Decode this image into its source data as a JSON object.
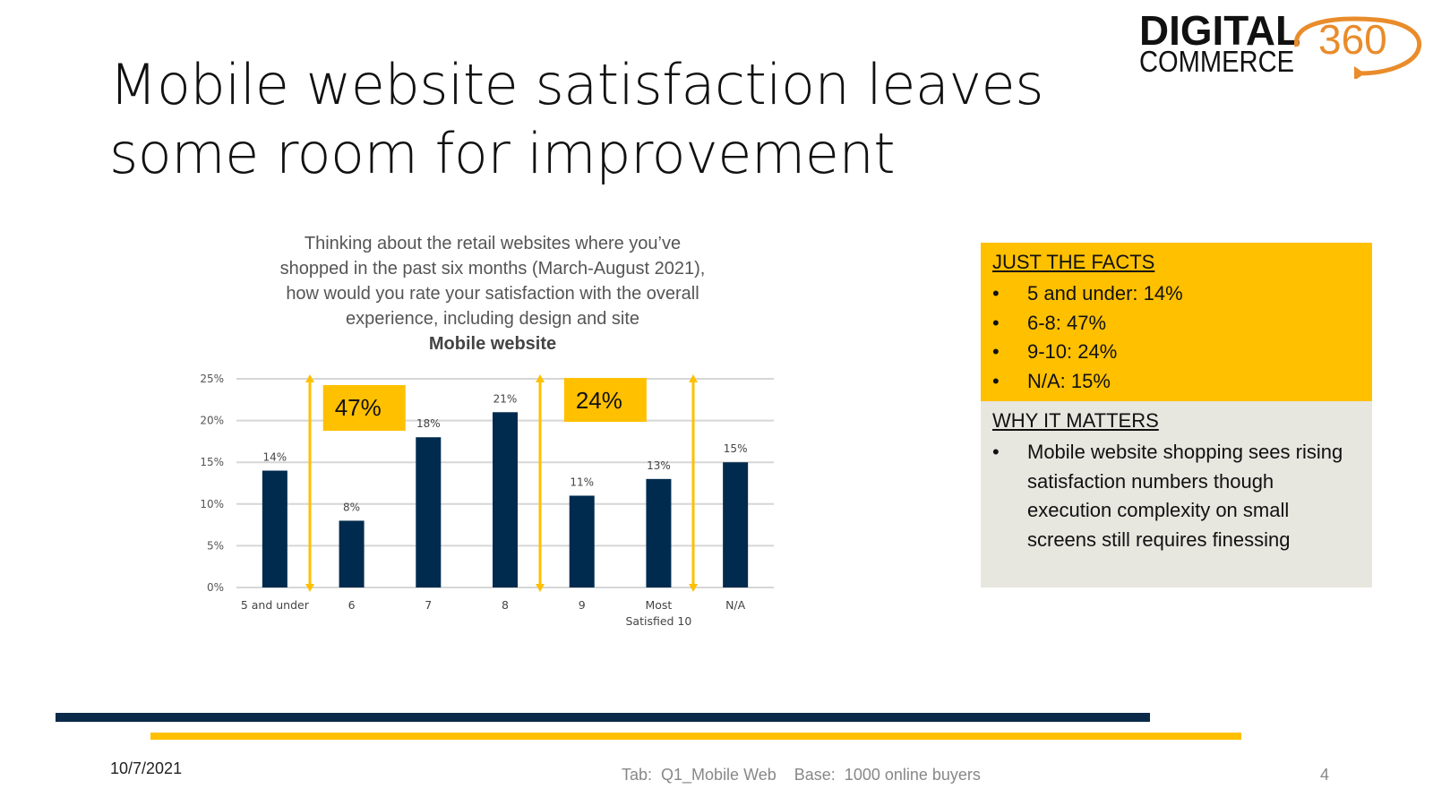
{
  "slide": {
    "title_line1": "Mobile website satisfaction leaves",
    "title_line2": "some room for improvement",
    "date": "10/7/2021",
    "footer_tab": "Tab:  Q1_Mobile Web",
    "footer_base": "Base:  1000 online buyers",
    "page_number": "4"
  },
  "logo": {
    "word1": "DIGITAL",
    "word2": "COMMERCE",
    "number": "360"
  },
  "question": {
    "lines": [
      "Thinking about the retail websites where you’ve",
      "shopped in the past six months (March-August 2021),",
      "how would you rate your satisfaction with the overall",
      "experience, including design and site"
    ],
    "subtitle": "Mobile website"
  },
  "facts": {
    "heading": "JUST THE FACTS",
    "items": [
      "5 and under:  14%",
      "6-8:  47%",
      "9-10:  24%",
      "N/A:  15%"
    ]
  },
  "matters": {
    "heading": "WHY IT MATTERS",
    "items": [
      "Mobile website shopping sees rising satisfaction numbers though execution complexity on small screens still requires finessing"
    ]
  },
  "colors": {
    "bar": "#002B4E",
    "accent": "#FFC000",
    "navy": "#0B2A4A",
    "logo_orange": "#E98C2B"
  },
  "chart_data": {
    "type": "bar",
    "title": "Mobile website",
    "categories": [
      "5 and under",
      "6",
      "7",
      "8",
      "9",
      "Most Satisfied 10",
      "N/A"
    ],
    "category_lines": [
      [
        "5 and under"
      ],
      [
        "6"
      ],
      [
        "7"
      ],
      [
        "8"
      ],
      [
        "9"
      ],
      [
        "Most",
        "Satisfied 10"
      ],
      [
        "N/A"
      ]
    ],
    "values": [
      14,
      8,
      18,
      21,
      11,
      13,
      15
    ],
    "value_labels": [
      "14%",
      "8%",
      "18%",
      "21%",
      "11%",
      "13%",
      "15%"
    ],
    "ylim": [
      0,
      25
    ],
    "yticks": [
      0,
      5,
      10,
      15,
      20,
      25
    ],
    "ytick_labels": [
      "0%",
      "5%",
      "10%",
      "15%",
      "20%",
      "25%"
    ],
    "xlabel": "",
    "ylabel": "",
    "grid": true,
    "annotations": [
      {
        "label": "47%",
        "from_category": "6",
        "to_category": "8"
      },
      {
        "label": "24%",
        "from_category": "9",
        "to_category": "Most Satisfied 10"
      }
    ]
  }
}
